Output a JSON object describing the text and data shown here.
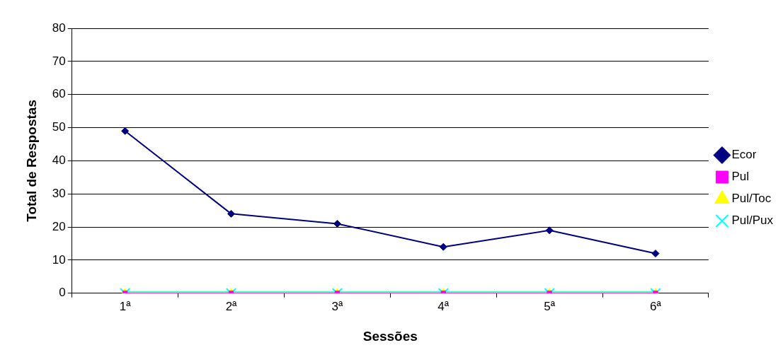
{
  "chart_data": {
    "type": "line",
    "xlabel": "Sessões",
    "ylabel": "Total de Respostas",
    "categories": [
      "1ª",
      "2ª",
      "3ª",
      "4ª",
      "5ª",
      "6ª"
    ],
    "series": [
      {
        "name": "Ecor",
        "color": "#000080",
        "marker": "diamond",
        "values": [
          49,
          24,
          21,
          14,
          19,
          12
        ]
      },
      {
        "name": "Pul",
        "color": "#ff00ff",
        "marker": "square",
        "values": [
          0,
          0,
          0,
          0,
          0,
          0
        ]
      },
      {
        "name": "Pul/Toc",
        "color": "#ffff00",
        "marker": "triangle",
        "values": [
          0,
          0,
          0,
          0,
          0,
          0
        ]
      },
      {
        "name": "Pul/Pux",
        "color": "#00ffff",
        "marker": "cross",
        "values": [
          0,
          0,
          0,
          0,
          0,
          0
        ]
      }
    ],
    "ylim": [
      0,
      80
    ],
    "yticks": [
      0,
      10,
      20,
      30,
      40,
      50,
      60,
      70,
      80
    ],
    "grid": "y",
    "legend": "right",
    "line_style": "solid"
  }
}
